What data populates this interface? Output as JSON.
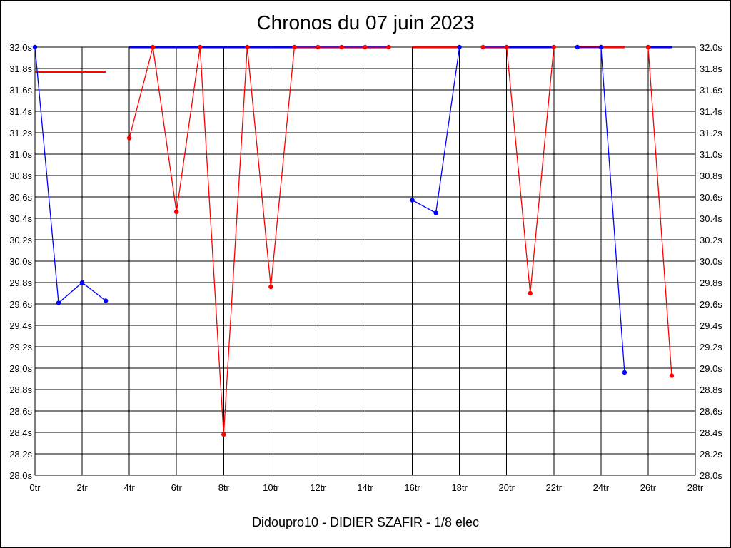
{
  "chart_data": {
    "type": "line",
    "title": "Chronos du 07 juin 2023",
    "subtitle": "Didoupro10 - DIDIER SZAFIR - 1/8 elec",
    "x_unit_suffix": "tr",
    "y_unit_suffix": "s",
    "xlim": [
      0,
      28
    ],
    "ylim": [
      28.0,
      32.0
    ],
    "x_ticks": [
      0,
      2,
      4,
      6,
      8,
      10,
      12,
      14,
      16,
      18,
      20,
      22,
      24,
      26,
      28
    ],
    "x_tick_labels": [
      "0tr",
      "2tr",
      "4tr",
      "6tr",
      "8tr",
      "10tr",
      "12tr",
      "14tr",
      "16tr",
      "18tr",
      "20tr",
      "22tr",
      "24tr",
      "26tr",
      "28tr"
    ],
    "y_ticks": [
      28.0,
      28.2,
      28.4,
      28.6,
      28.8,
      29.0,
      29.2,
      29.4,
      29.6,
      29.8,
      30.0,
      30.2,
      30.4,
      30.6,
      30.8,
      31.0,
      31.2,
      31.4,
      31.6,
      31.8,
      32.0
    ],
    "y_tick_labels": [
      "28.0s",
      "28.2s",
      "28.4s",
      "28.6s",
      "28.8s",
      "29.0s",
      "29.2s",
      "29.4s",
      "29.6s",
      "29.8s",
      "30.0s",
      "30.2s",
      "30.4s",
      "30.6s",
      "30.8s",
      "31.0s",
      "31.2s",
      "31.4s",
      "31.6s",
      "31.8s",
      "32.0s"
    ],
    "grid": true,
    "colors": {
      "blue": "#0000ff",
      "red": "#ff0000",
      "grid": "#000000"
    },
    "series": [
      {
        "color": "#0000ff",
        "points": [
          [
            0,
            32.0
          ],
          [
            1,
            29.61
          ],
          [
            2,
            29.8
          ],
          [
            3,
            29.63
          ]
        ]
      },
      {
        "color": "#ff0000",
        "points": [
          [
            4,
            31.15
          ],
          [
            5,
            32.0
          ],
          [
            6,
            30.46
          ],
          [
            7,
            32.0
          ],
          [
            8,
            28.38
          ],
          [
            9,
            32.0
          ],
          [
            10,
            29.76
          ],
          [
            11,
            32.0
          ],
          [
            12,
            32.0
          ],
          [
            13,
            32.0
          ],
          [
            14,
            32.0
          ],
          [
            15,
            32.0
          ]
        ]
      },
      {
        "color": "#0000ff",
        "points": [
          [
            16,
            30.57
          ],
          [
            17,
            30.45
          ],
          [
            18,
            32.0
          ]
        ]
      },
      {
        "color": "#ff0000",
        "points": [
          [
            19,
            32.0
          ],
          [
            20,
            32.0
          ],
          [
            21,
            29.7
          ],
          [
            22,
            32.0
          ]
        ]
      },
      {
        "color": "#0000ff",
        "points": [
          [
            23,
            32.0
          ],
          [
            24,
            32.0
          ],
          [
            25,
            28.96
          ]
        ]
      },
      {
        "color": "#ff0000",
        "points": [
          [
            26,
            32.0
          ],
          [
            27,
            28.93
          ]
        ]
      }
    ],
    "segments": [
      {
        "color": "#ff0000",
        "from": [
          0,
          31.77
        ],
        "to": [
          3,
          31.77
        ]
      },
      {
        "color": "#0000ff",
        "from": [
          4,
          32.0
        ],
        "to": [
          15,
          32.0
        ]
      },
      {
        "color": "#ff0000",
        "from": [
          16,
          32.0
        ],
        "to": [
          18,
          32.0
        ]
      },
      {
        "color": "#0000ff",
        "from": [
          19,
          32.0
        ],
        "to": [
          22,
          32.0
        ]
      },
      {
        "color": "#ff0000",
        "from": [
          23,
          32.0
        ],
        "to": [
          25,
          32.0
        ]
      },
      {
        "color": "#0000ff",
        "from": [
          26,
          32.0
        ],
        "to": [
          27,
          32.0
        ]
      }
    ]
  }
}
